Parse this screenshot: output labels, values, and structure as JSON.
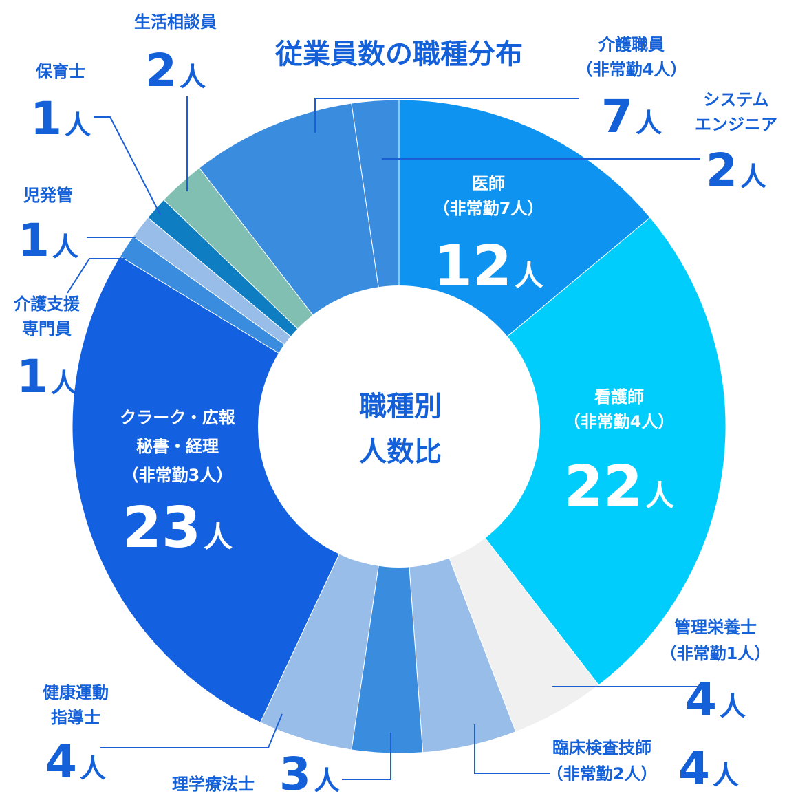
{
  "title": "従業員数の職種分布",
  "center_label": [
    "職種別",
    "人数比"
  ],
  "unit": "人",
  "colors": {
    "primary_text": "#1460d8",
    "leader_line": "#1a5fd6",
    "background": "#ffffff"
  },
  "chart_data": {
    "type": "pie",
    "donut": true,
    "start": "12 o'clock",
    "direction": "clockwise",
    "slices": [
      {
        "key": "doctor",
        "label": [
          "医師",
          "（非常勤7人）"
        ],
        "value": 12,
        "color": "#0f93f0"
      },
      {
        "key": "nurse",
        "label": [
          "看護師",
          "（非常勤4人）"
        ],
        "value": 22,
        "color": "#00cdfb"
      },
      {
        "key": "dietitian",
        "label": [
          "管理栄養士",
          "（非常勤1人）"
        ],
        "value": 4,
        "color": "#f0f0f0"
      },
      {
        "key": "lab_tech",
        "label": [
          "臨床検査技師",
          "（非常勤2人）"
        ],
        "value": 4,
        "color": "#98bde9"
      },
      {
        "key": "pt",
        "label": [
          "理学療法士"
        ],
        "value": 3,
        "color": "#3a8cdf"
      },
      {
        "key": "exercise",
        "label": [
          "健康運動",
          "指導士"
        ],
        "value": 4,
        "color": "#98bde9"
      },
      {
        "key": "clerk",
        "label": [
          "クラーク・広報",
          "秘書・経理",
          "（非常勤3人）"
        ],
        "value": 23,
        "color": "#1360e0"
      },
      {
        "key": "care_support",
        "label": [
          "介護支援",
          "専門員"
        ],
        "value": 1,
        "color": "#3a8cdf"
      },
      {
        "key": "child_dev",
        "label": [
          "児発管"
        ],
        "value": 1,
        "color": "#98bde9"
      },
      {
        "key": "childcare",
        "label": [
          "保育士"
        ],
        "value": 1,
        "color": "#0e7dc2"
      },
      {
        "key": "life_counsel",
        "label": [
          "生活相談員"
        ],
        "value": 2,
        "color": "#80bfb1"
      },
      {
        "key": "care_staff",
        "label": [
          "介護職員",
          "（非常勤4人）"
        ],
        "value": 7,
        "color": "#3a8cdf"
      },
      {
        "key": "sys_eng",
        "label": [
          "システム",
          "エンジニア"
        ],
        "value": 2,
        "color": "#3a8cdf"
      }
    ]
  }
}
